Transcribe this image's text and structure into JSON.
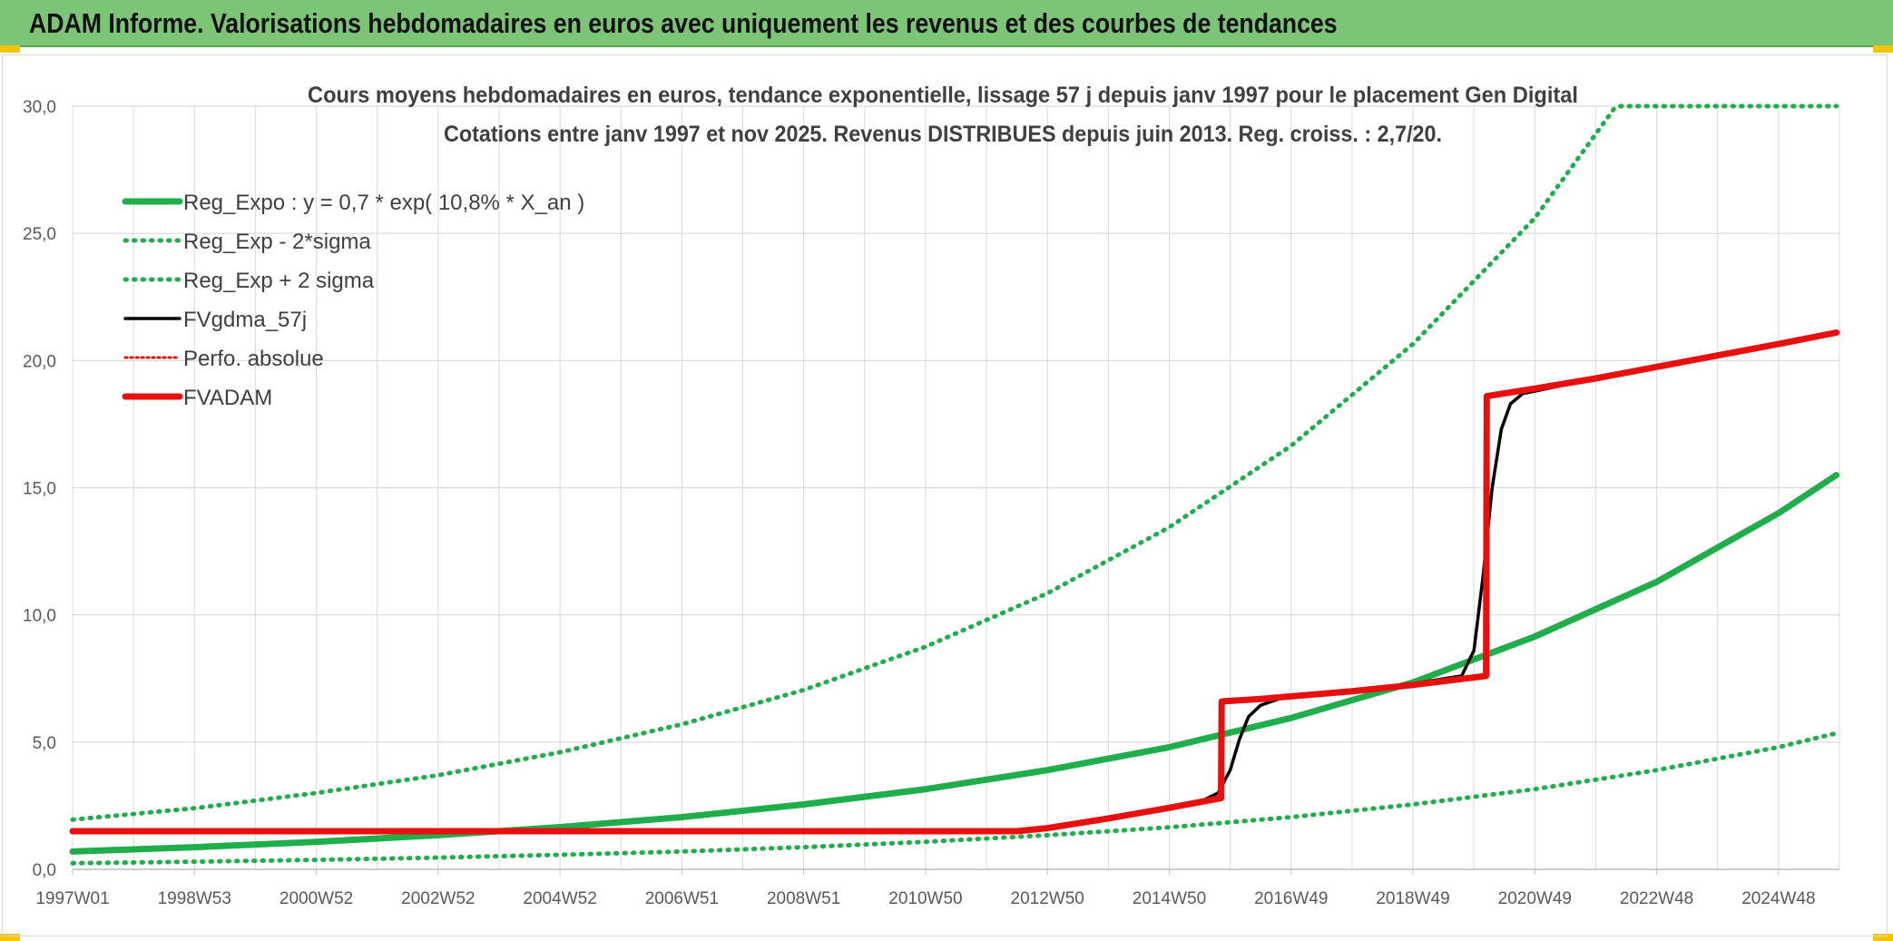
{
  "header": {
    "title": "ADAM Informe. Valorisations hebdomadaires en euros avec uniquement les revenus et des courbes de tendances"
  },
  "colors": {
    "banner": "#7cc576",
    "green": "#1fae4b",
    "red": "#e8100e",
    "black": "#000000",
    "grid": "#d9d9d9",
    "axis_text": "#595959",
    "title_text": "#404040"
  },
  "chart_data": {
    "type": "line",
    "title": "Cours moyens hebdomadaires en euros, tendance exponentielle, lissage 57 j depuis janv 1997 pour le placement Gen Digital",
    "subtitle": "Cotations entre janv 1997 et nov 2025. Revenus DISTRIBUES depuis juin 2013. Reg. croiss. : 2,7/20.",
    "xlabel": "",
    "ylabel": "",
    "ylim": [
      0,
      30
    ],
    "xlim": [
      1997.0,
      2026.0
    ],
    "grid": true,
    "legend_position": "top-left",
    "y_ticks": [
      "0,0",
      "5,0",
      "10,0",
      "15,0",
      "20,0",
      "25,0",
      "30,0"
    ],
    "x_ticks": [
      {
        "label": "1997W01",
        "x": 1997.0
      },
      {
        "label": "1998W53",
        "x": 1999.0
      },
      {
        "label": "2000W52",
        "x": 2001.0
      },
      {
        "label": "2002W52",
        "x": 2003.0
      },
      {
        "label": "2004W52",
        "x": 2005.0
      },
      {
        "label": "2006W51",
        "x": 2007.0
      },
      {
        "label": "2008W51",
        "x": 2009.0
      },
      {
        "label": "2010W50",
        "x": 2011.0
      },
      {
        "label": "2012W50",
        "x": 2013.0
      },
      {
        "label": "2014W50",
        "x": 2015.0
      },
      {
        "label": "2016W49",
        "x": 2017.0
      },
      {
        "label": "2018W49",
        "x": 2019.0
      },
      {
        "label": "2020W49",
        "x": 2021.0
      },
      {
        "label": "2022W48",
        "x": 2023.0
      },
      {
        "label": "2024W48",
        "x": 2025.0
      }
    ],
    "series": [
      {
        "name": "Reg_Expo : y = 0,7 * exp( 10,8% *  X_an )",
        "style": "solid-thick",
        "color": "#1fae4b",
        "x": [
          1997,
          1999,
          2001,
          2003,
          2005,
          2007,
          2009,
          2011,
          2013,
          2015,
          2017,
          2019,
          2021,
          2023,
          2025,
          2025.95
        ],
        "values": [
          0.7,
          0.87,
          1.08,
          1.34,
          1.66,
          2.05,
          2.55,
          3.15,
          3.9,
          4.8,
          5.95,
          7.35,
          9.15,
          11.3,
          14.0,
          15.5
        ]
      },
      {
        "name": "Reg_Exp - 2*sigma",
        "style": "dotted",
        "color": "#1fae4b",
        "x": [
          1997,
          1999,
          2001,
          2003,
          2005,
          2007,
          2009,
          2011,
          2013,
          2015,
          2017,
          2019,
          2021,
          2023,
          2025,
          2025.95
        ],
        "values": [
          0.24,
          0.3,
          0.37,
          0.46,
          0.57,
          0.7,
          0.87,
          1.08,
          1.34,
          1.65,
          2.05,
          2.55,
          3.15,
          3.9,
          4.8,
          5.35
        ]
      },
      {
        "name": "Reg_Exp + 2 sigma",
        "style": "dotted",
        "color": "#1fae4b",
        "x": [
          1997,
          1999,
          2001,
          2003,
          2005,
          2007,
          2009,
          2011,
          2013,
          2015,
          2017,
          2019,
          2021,
          2022.3,
          2022.4,
          2025.95
        ],
        "values": [
          1.95,
          2.4,
          3.0,
          3.7,
          4.6,
          5.7,
          7.05,
          8.75,
          10.85,
          13.45,
          16.65,
          20.65,
          25.6,
          29.9,
          30.0,
          30.0
        ]
      },
      {
        "name": "FVgdma_57j",
        "style": "solid",
        "color": "#000000",
        "x": [
          1997,
          2012.3,
          2012.6,
          2013.0,
          2013.5,
          2014.0,
          2014.5,
          2015.0,
          2015.5,
          2015.8,
          2016.0,
          2016.15,
          2016.3,
          2016.5,
          2016.8,
          2017.2,
          2018.0,
          2019.0,
          2019.8,
          2020.0,
          2020.15,
          2020.3,
          2020.45,
          2020.6,
          2020.8,
          2021.1,
          2021.5,
          2022.0,
          2023.0,
          2024.0,
          2025.0,
          2025.95
        ],
        "values": [
          1.5,
          1.5,
          1.52,
          1.65,
          1.85,
          2.05,
          2.25,
          2.45,
          2.65,
          3.0,
          3.9,
          5.1,
          6.0,
          6.45,
          6.7,
          6.85,
          7.05,
          7.3,
          7.6,
          8.6,
          11.5,
          15.0,
          17.3,
          18.3,
          18.7,
          18.85,
          19.05,
          19.3,
          19.75,
          20.2,
          20.65,
          21.1
        ]
      },
      {
        "name": "Perfo. absolue",
        "style": "dotted",
        "color": "#e8100e",
        "x": [
          1997,
          2012.5,
          2013.0,
          2014.0,
          2015.0,
          2015.85,
          2015.86,
          2016.5,
          2017.0,
          2018.0,
          2019.0,
          2020.2,
          2020.21,
          2021.0,
          2022.0,
          2023.0,
          2024.0,
          2025.0,
          2025.95
        ],
        "values": [
          1.5,
          1.5,
          1.62,
          2.0,
          2.42,
          2.8,
          6.6,
          6.7,
          6.8,
          7.0,
          7.25,
          7.6,
          18.6,
          18.9,
          19.3,
          19.75,
          20.2,
          20.65,
          21.1
        ]
      },
      {
        "name": "FVADAM",
        "style": "solid-thick",
        "color": "#e8100e",
        "x": [
          1997,
          2012.5,
          2013.0,
          2014.0,
          2015.0,
          2015.85,
          2015.86,
          2016.5,
          2017.0,
          2018.0,
          2019.0,
          2020.2,
          2020.21,
          2021.0,
          2022.0,
          2023.0,
          2024.0,
          2025.0,
          2025.95
        ],
        "values": [
          1.5,
          1.5,
          1.62,
          2.0,
          2.42,
          2.8,
          6.6,
          6.7,
          6.8,
          7.0,
          7.25,
          7.6,
          18.6,
          18.9,
          19.3,
          19.75,
          20.2,
          20.65,
          21.1
        ]
      }
    ]
  }
}
